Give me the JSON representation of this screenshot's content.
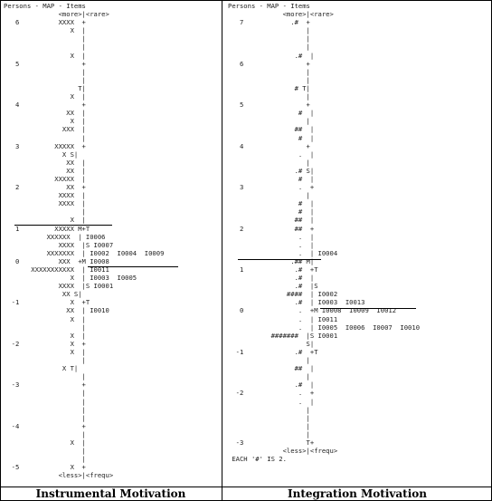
{
  "left_panel": {
    "lines": [
      "Persons - MAP - Items",
      "              <more>|<rare>",
      "   6          XXXX  +",
      "                 X  |",
      "                    |",
      "                    |",
      "                 X  |",
      "   5                +",
      "                    |",
      "                    |",
      "                   T|",
      "                 X  |",
      "   4                +",
      "                XX  |",
      "                 X  |",
      "               XXX  |",
      "                    |",
      "   3         XXXXX  +",
      "               X S|",
      "                XX  |",
      "                XX  |",
      "             XXXXX  |",
      "   2            XX  +",
      "              XXXX  |",
      "              XXXX  |",
      "                    |",
      "                 X  |",
      "   1         XXXXX M+T",
      "           XXXXXX  | I0006",
      "              XXXX  |S I0007",
      "           XXXXXXX  | I0002  I0004  I0009",
      "   0          XXX  +M I0008",
      "       XXXXXXXXXXX  | I0011",
      "                 X  | I0003  I0005",
      "              XXXX  |S I0001",
      "               XX S|",
      "  -1             X  +T",
      "                XX  | I0010",
      "                 X  |",
      "                    |",
      "                 X  |",
      "  -2             X  +",
      "                 X  |",
      "                    |",
      "               X T|",
      "                    |",
      "  -3                +",
      "                    |",
      "                    |",
      "                    |",
      "                    |",
      "  -4                +",
      "                    |",
      "                 X  |",
      "                    |",
      "                    |",
      "  -5             X  +",
      "              <less>|<frequ>"
    ],
    "caption": "Instrumental Motivation"
  },
  "right_panel": {
    "lines": [
      "Persons - MAP - Items",
      "              <more>|<rare>",
      "   7            .#  +",
      "                    |",
      "                    |",
      "                    |",
      "                 .#  |",
      "   6                +",
      "                    |",
      "                    |",
      "                 # T|",
      "                    |",
      "   5                +",
      "                  #  |",
      "                    |",
      "                 ##  |",
      "                  #  |",
      "   4                +",
      "                  .  |",
      "                    |",
      "                 .# S|",
      "                  #  |",
      "   3              .  +",
      "                    |",
      "                  #  |",
      "                  #  |",
      "                 ##  |",
      "   2             ##  +",
      "                  .  |",
      "                  .  |",
      "                  .  | I0004",
      "                .## M|",
      "   1             .#  +T",
      "                 .#  |",
      "                 .#  |S",
      "               ####  | I0002",
      "                 .#  | I0003  I0013",
      "   0              .  +M I0008  I0009  I0012",
      "                  .  | I0011",
      "                  .  | I0005  I0006  I0007  I0010",
      "           #######  |S I0001",
      "                    S|",
      "  -1             .#  +T",
      "                    |",
      "                 ##  |",
      "                    |",
      "                 .#  |",
      "  -2              .  +",
      "                  .  |",
      "                    |",
      "                    |",
      "                    |",
      "                    |",
      "  -3                T+",
      "              <less>|<frequ>",
      " EACH '#' IS 2."
    ],
    "caption": "Integration Motivation"
  }
}
